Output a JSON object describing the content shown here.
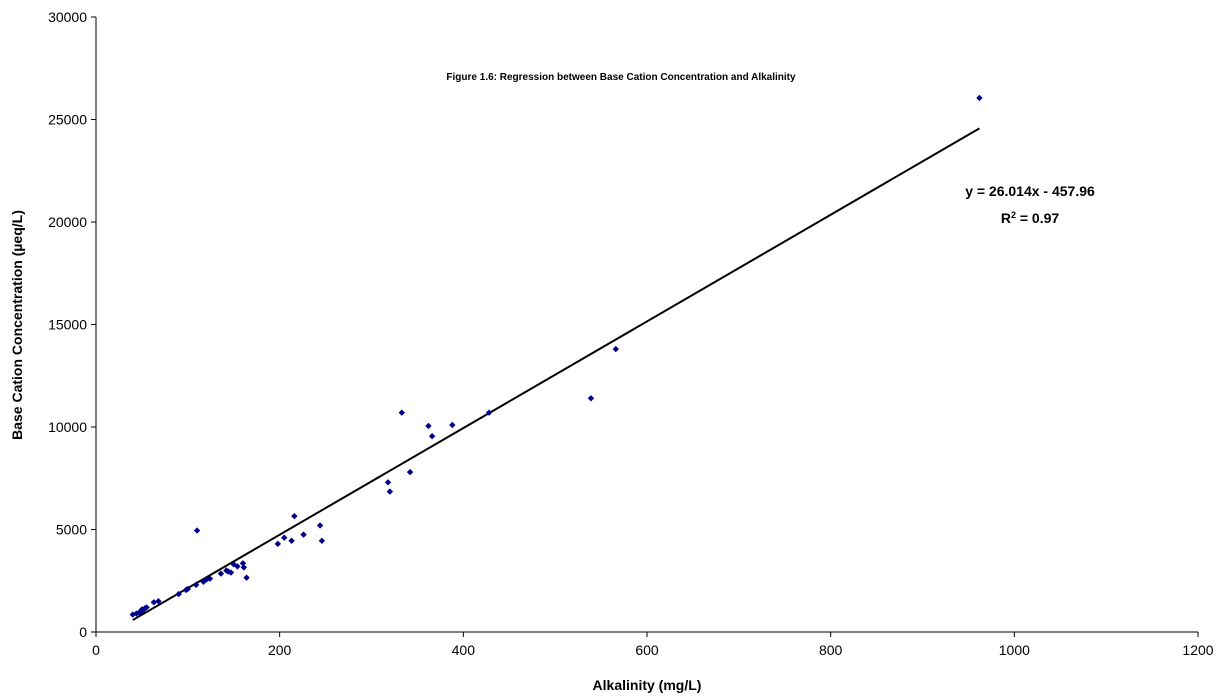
{
  "chart_data": {
    "type": "scatter",
    "title": "Figure 1.6: Regression between Base Cation Concentration and Alkalinity",
    "xlabel": "Alkalinity (mg/L)",
    "ylabel": "Base Cation Concentration  (µeq/L)",
    "xlim": [
      0,
      1200
    ],
    "ylim": [
      0,
      30000
    ],
    "xticks": [
      0,
      200,
      400,
      600,
      800,
      1000,
      1200
    ],
    "yticks": [
      0,
      5000,
      10000,
      15000,
      20000,
      25000,
      30000
    ],
    "grid": false,
    "marker_color": "#00008B",
    "trendline": {
      "slope": 26.014,
      "intercept": -457.96,
      "x_range": [
        40,
        962
      ],
      "equation_label": "y = 26.014x - 457.96",
      "r2_prefix": "R",
      "r2_superscript": "2",
      "r2_value": " = 0.97"
    },
    "points": [
      [
        40,
        850
      ],
      [
        44,
        900
      ],
      [
        47,
        950
      ],
      [
        49,
        1000
      ],
      [
        51,
        1050
      ],
      [
        53,
        1150
      ],
      [
        55,
        1200
      ],
      [
        50,
        1100
      ],
      [
        63,
        1450
      ],
      [
        68,
        1500
      ],
      [
        90,
        1850
      ],
      [
        98,
        2050
      ],
      [
        100,
        2100
      ],
      [
        109,
        2300
      ],
      [
        110,
        4950
      ],
      [
        117,
        2450
      ],
      [
        120,
        2550
      ],
      [
        124,
        2600
      ],
      [
        136,
        2850
      ],
      [
        142,
        3000
      ],
      [
        144,
        2950
      ],
      [
        147,
        2900
      ],
      [
        150,
        3300
      ],
      [
        154,
        3200
      ],
      [
        160,
        3350
      ],
      [
        161,
        3150
      ],
      [
        164,
        2650
      ],
      [
        198,
        4300
      ],
      [
        205,
        4600
      ],
      [
        213,
        4450
      ],
      [
        216,
        5650
      ],
      [
        226,
        4750
      ],
      [
        244,
        5200
      ],
      [
        246,
        4450
      ],
      [
        318,
        7300
      ],
      [
        320,
        6850
      ],
      [
        333,
        10700
      ],
      [
        342,
        7800
      ],
      [
        362,
        10050
      ],
      [
        366,
        9550
      ],
      [
        388,
        10100
      ],
      [
        428,
        10700
      ],
      [
        539,
        11400
      ],
      [
        566,
        13800
      ],
      [
        962,
        26050
      ]
    ]
  }
}
